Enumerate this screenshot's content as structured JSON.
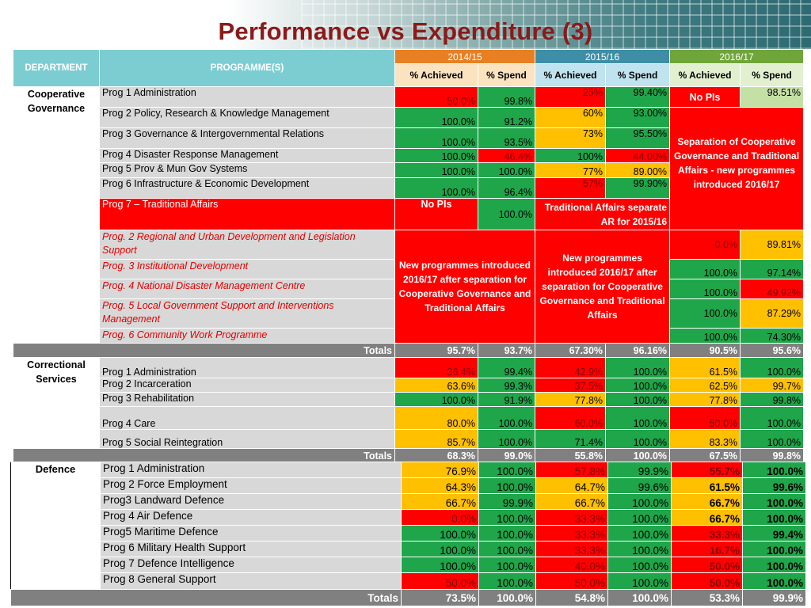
{
  "title": "Performance vs Expenditure (3)",
  "header": {
    "department": "DEPARTMENT",
    "programmes": "PROGRAMME(S)",
    "years": [
      "2014/15",
      "2015/16",
      "2016/17"
    ],
    "achieved": "% Achieved",
    "spend14": "%  Spend",
    "spend": "% Spend"
  },
  "coop": {
    "name": "Cooperative Governance",
    "rows": [
      {
        "prog": "Prog 1 Administration",
        "a1": "50.0%",
        "s1": "99.8%",
        "a2": "25%",
        "s2": "99.40%",
        "a3": "No PIs",
        "s3": "98.51%"
      },
      {
        "prog": "Prog 2 Policy, Research & Knowledge Management",
        "a1": "100.0%",
        "s1": "91.2%",
        "a2": "60%",
        "s2": "93.00%"
      },
      {
        "prog": "Prog 3 Governance & Intergovernmental Relations",
        "a1": "100.0%",
        "s1": "93.5%",
        "a2": "73%",
        "s2": "95.50%"
      },
      {
        "prog": "Prog 4 Disaster Response Management",
        "a1": "100.0%",
        "s1": "46.4%",
        "a2": "100%",
        "s2": "44.00%"
      },
      {
        "prog": "Prog 5 Prov & Mun Gov Systems",
        "a1": "100.0%",
        "s1": "100.0%",
        "a2": "77%",
        "s2": "89.00%"
      },
      {
        "prog": "Prog 6 Infrastructure & Economic Development",
        "a1": "100.0%",
        "s1": "96.4%",
        "a2": "57%",
        "s2": "99.90%"
      },
      {
        "prog": "Prog 7 – Traditional Affairs",
        "a1": "No PIs",
        "s1": "100.0%"
      }
    ],
    "note_sep2017": "Separation of Cooperative Governance and Traditional Affairs - new programmes introduced 2016/17",
    "note_trad": "Traditional Affairs separate AR for 2015/16",
    "new_rows": [
      {
        "prog": "Prog. 2 Regional and Urban Development and Legislation Support",
        "a3": "0.0%",
        "s3": "89.81%"
      },
      {
        "prog": "Prog. 3 Institutional Development",
        "a3": "100.0%",
        "s3": "97.14%"
      },
      {
        "prog": "Prog. 4 National Disaster Management Centre",
        "a3": "100.0%",
        "s3": "49.92%"
      },
      {
        "prog": "Prog. 5 Local Government Support and Interventions Management",
        "a3": "100.0%",
        "s3": "87.29%"
      },
      {
        "prog": "Prog. 6 Community Work Programme",
        "a3": "100.0%",
        "s3": "74.30%"
      }
    ],
    "note_new1": "New programmes introduced 2016/17 after separation for Cooperative Governance and Traditional Affairs",
    "note_new2": "New programmes introduced 2016/17 after separation for Cooperative Governance and Traditional Affairs",
    "totals": {
      "label": "Totals",
      "a1": "95.7%",
      "s1": "93.7%",
      "a2": "67.30%",
      "s2": "96.16%",
      "a3": "90.5%",
      "s3": "95.6%"
    }
  },
  "corr": {
    "name": "Correctional Services",
    "rows": [
      {
        "prog": "Prog 1 Administration",
        "a1": "36.4%",
        "s1": "99.4%",
        "a2": "42.9%",
        "s2": "100.0%",
        "a3": "61.5%",
        "s3": "100.0%"
      },
      {
        "prog": "Prog 2 Incarceration",
        "a1": "63.6%",
        "s1": "99.3%",
        "a2": "37.5%",
        "s2": "100.0%",
        "a3": "62.5%",
        "s3": "99.7%"
      },
      {
        "prog": "Prog 3 Rehabilitation",
        "a1": "100.0%",
        "s1": "91.9%",
        "a2": "77.8%",
        "s2": "100.0%",
        "a3": "77.8%",
        "s3": "99.8%"
      },
      {
        "prog": "Prog 4 Care",
        "a1": "80.0%",
        "s1": "100.0%",
        "a2": "60.0%",
        "s2": "100.0%",
        "a3": "50.0%",
        "s3": "100.0%"
      },
      {
        "prog": "Prog 5 Social Reintegration",
        "a1": "85.7%",
        "s1": "100.0%",
        "a2": "71.4%",
        "s2": "100.0%",
        "a3": "83.3%",
        "s3": "100.0%"
      }
    ],
    "totals": {
      "label": "Totals",
      "a1": "68.3%",
      "s1": "99.0%",
      "a2": "55.8%",
      "s2": "100.0%",
      "a3": "67.5%",
      "s3": "99.8%"
    }
  },
  "def": {
    "name": "Defence",
    "rows": [
      {
        "prog": "Prog 1 Administration",
        "a1": "76.9%",
        "s1": "100.0%",
        "a2": "57.8%",
        "s2": "99.9%",
        "a3": "55.7%",
        "s3": "100.0%"
      },
      {
        "prog": "Prog 2 Force Employment",
        "a1": "64.3%",
        "s1": "100.0%",
        "a2": "64.7%",
        "s2": "99.6%",
        "a3": "61.5%",
        "s3": "99.6%"
      },
      {
        "prog": "Prog3 Landward Defence",
        "a1": "66.7%",
        "s1": "99.9%",
        "a2": "66.7%",
        "s2": "100.0%",
        "a3": "66.7%",
        "s3": "100.0%"
      },
      {
        "prog": "Prog 4 Air Defence",
        "a1": "0.0%",
        "s1": "100.0%",
        "a2": "33.3%",
        "s2": "100.0%",
        "a3": "66.7%",
        "s3": "100.0%"
      },
      {
        "prog": "Prog5 Maritime Defence",
        "a1": "100.0%",
        "s1": "100.0%",
        "a2": "33.3%",
        "s2": "100.0%",
        "a3": "33.3%",
        "s3": "99.4%"
      },
      {
        "prog": "Prog 6 Military Health Support",
        "a1": "100.0%",
        "s1": "100.0%",
        "a2": "33.3%",
        "s2": "100.0%",
        "a3": "16.7%",
        "s3": "100.0%"
      },
      {
        "prog": "Prog 7 Defence Intelligence",
        "a1": "100.0%",
        "s1": "100.0%",
        "a2": "40.0%",
        "s2": "100.0%",
        "a3": "50.0%",
        "s3": "100.0%"
      },
      {
        "prog": "Prog 8 General Support",
        "a1": "50.0%",
        "s1": "100.0%",
        "a2": "50.0%",
        "s2": "100.0%",
        "a3": "50.0%",
        "s3": "100.0%"
      }
    ],
    "totals": {
      "label": "Totals",
      "a1": "73.5%",
      "s1": "100.0%",
      "a2": "54.8%",
      "s2": "100.0%",
      "a3": "53.3%",
      "s3": "99.9%"
    }
  },
  "colors": {
    "title": "#8b1a1a",
    "green": "#1fa54a",
    "yellow": "#ffc000",
    "red": "#ff0000",
    "light_green": "#c5e0a5",
    "grey": "#808080"
  }
}
